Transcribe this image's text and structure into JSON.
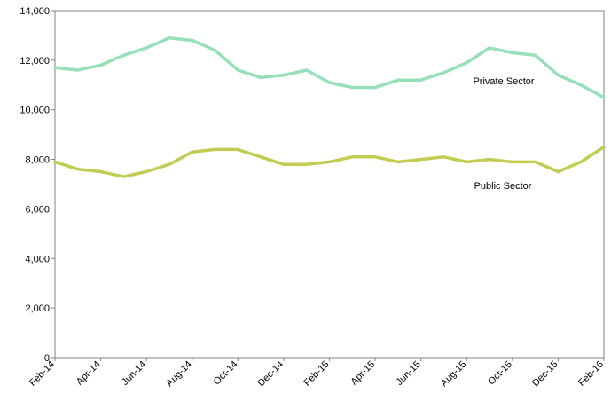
{
  "chart_data": {
    "type": "line",
    "title": "",
    "xlabel": "",
    "ylabel": "",
    "ylim": [
      0,
      14000
    ],
    "yticks": [
      0,
      2000,
      4000,
      6000,
      8000,
      10000,
      12000,
      14000
    ],
    "ytick_labels": [
      "0",
      "2,000",
      "4,000",
      "6,000",
      "8,000",
      "10,000",
      "12,000",
      "14,000"
    ],
    "x": [
      "Feb-14",
      "Mar-14",
      "Apr-14",
      "May-14",
      "Jun-14",
      "Jul-14",
      "Aug-14",
      "Sep-14",
      "Oct-14",
      "Nov-14",
      "Dec-14",
      "Jan-15",
      "Feb-15",
      "Mar-15",
      "Apr-15",
      "May-15",
      "Jun-15",
      "Jul-15",
      "Aug-15",
      "Sep-15",
      "Oct-15",
      "Nov-15",
      "Dec-15",
      "Jan-16",
      "Feb-16"
    ],
    "xtick_labels": [
      "Feb-14",
      "Apr-14",
      "Jun-14",
      "Aug-14",
      "Oct-14",
      "Dec-14",
      "Feb-15",
      "Apr-15",
      "Jun-15",
      "Aug-15",
      "Oct-15",
      "Dec-15",
      "Feb-16"
    ],
    "grid": false,
    "series": [
      {
        "name": "Private Sector",
        "color": "#96e0b8",
        "values": [
          11700,
          11600,
          11800,
          12200,
          12500,
          12900,
          12800,
          12400,
          11600,
          11300,
          11400,
          11600,
          11100,
          10900,
          10900,
          11200,
          11200,
          11500,
          11900,
          12500,
          12300,
          12200,
          11400,
          11000,
          10500
        ]
      },
      {
        "name": "Public Sector",
        "color": "#c3cc52",
        "values": [
          7900,
          7600,
          7500,
          7300,
          7500,
          7800,
          8300,
          8400,
          8400,
          8100,
          7800,
          7800,
          7900,
          8100,
          8100,
          7900,
          8000,
          8100,
          7900,
          8000,
          7900,
          7900,
          7500,
          7900,
          8500
        ]
      }
    ]
  }
}
